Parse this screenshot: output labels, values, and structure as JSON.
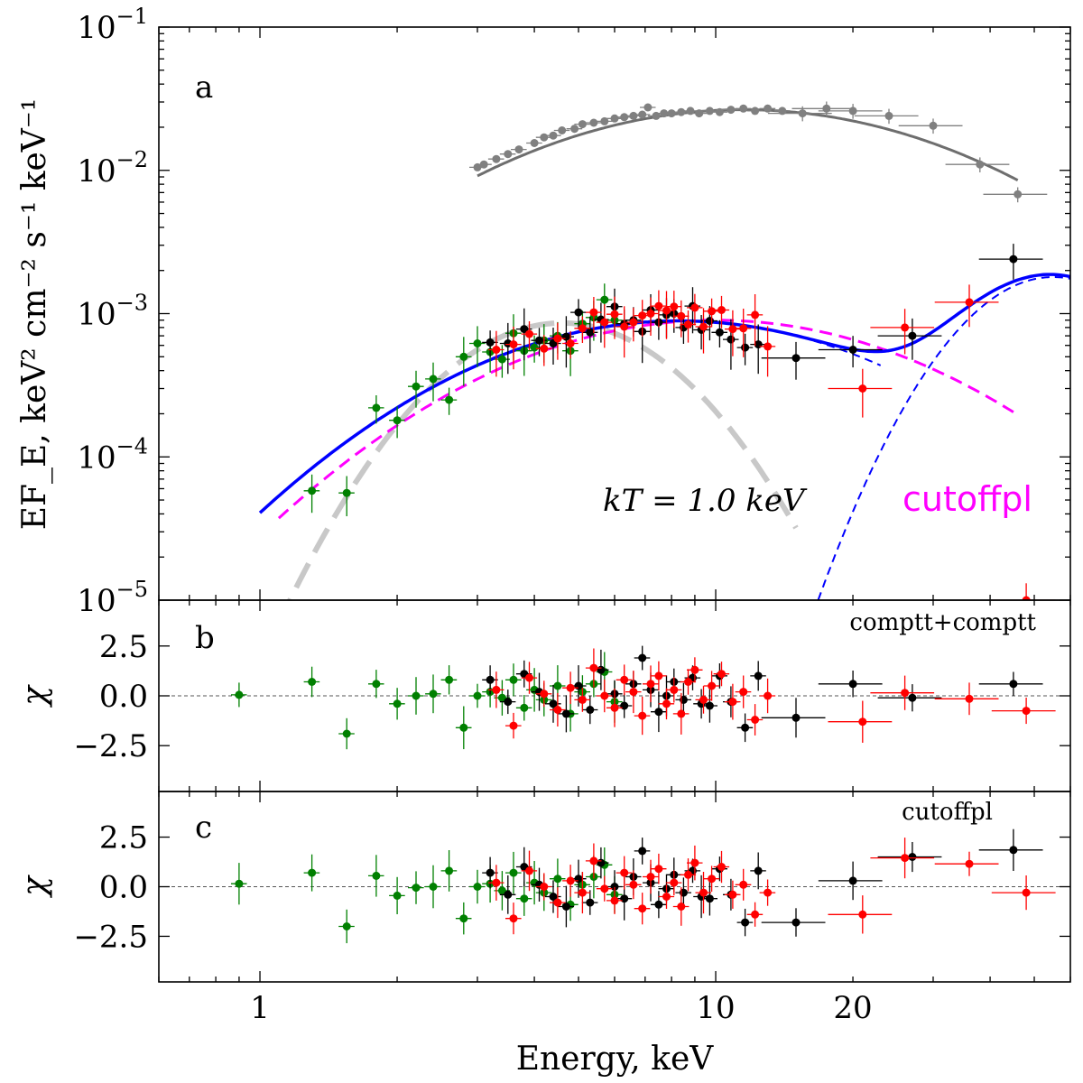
{
  "chart_data": {
    "type": "scatter",
    "xscale": "log",
    "xlim": [
      0.6,
      60
    ],
    "xlabel": "Energy, keV",
    "x_ticks": [
      1,
      10,
      20
    ],
    "x_tick_labels": [
      "1",
      "10",
      "20"
    ],
    "panels": [
      {
        "id": "a",
        "label": "a",
        "yscale": "log",
        "ylim": [
          1e-05,
          0.1
        ],
        "ylabel": "EF_E, keV² cm⁻² s⁻¹ keV⁻¹",
        "y_tick_exponents": [
          -5,
          -4,
          -3,
          -2,
          -1
        ],
        "annotations": {
          "kT": "kT = 1.0 keV",
          "cutoffpl": "cutoffpl"
        },
        "colors": {
          "black": "#000000",
          "red": "#ff0000",
          "green": "#008000",
          "grey": "#808080",
          "total": "#0000ff",
          "cutoffpl": "#ff00ff",
          "bbody": "#c8c8c8"
        },
        "series": [
          {
            "name": "green",
            "color": "#008000",
            "x": [
              1.3,
              1.55,
              1.8,
              2.0,
              2.2,
              2.4,
              2.6,
              2.8,
              3.0,
              3.2,
              3.4,
              3.6,
              3.8,
              4.0,
              4.2,
              4.5,
              4.8,
              5.1,
              5.4,
              5.7,
              6.0
            ],
            "y": [
              5.8e-05,
              5.6e-05,
              0.00022,
              0.00018,
              0.00031,
              0.00035,
              0.00025,
              0.0005,
              0.00062,
              0.00054,
              0.00048,
              0.00073,
              0.00055,
              0.00058,
              0.00065,
              0.0007,
              0.00055,
              0.00085,
              0.00094,
              0.00125,
              0.0009
            ]
          },
          {
            "name": "black",
            "color": "#000000",
            "x": [
              3.2,
              3.5,
              3.8,
              4.1,
              4.4,
              4.7,
              5.0,
              5.3,
              5.6,
              6.0,
              6.3,
              6.6,
              6.9,
              7.2,
              7.5,
              7.8,
              8.1,
              8.5,
              8.9,
              9.3,
              9.7,
              10.2,
              10.8,
              11.6,
              12.4,
              15.0,
              20.0,
              27.0,
              45.0
            ],
            "y": [
              0.00063,
              0.00062,
              0.00078,
              0.00065,
              0.00062,
              0.00069,
              0.00102,
              0.00074,
              0.00091,
              0.00112,
              0.00085,
              0.0009,
              0.00075,
              0.00106,
              0.00087,
              0.00098,
              0.001,
              0.0008,
              0.00113,
              0.00077,
              0.00089,
              0.00074,
              0.00066,
              0.00058,
              0.00061,
              0.00049,
              0.00056,
              0.0007,
              0.0024
            ]
          },
          {
            "name": "red",
            "color": "#ff0000",
            "x": [
              3.3,
              3.6,
              3.9,
              4.2,
              4.5,
              4.8,
              5.1,
              5.4,
              5.7,
              6.0,
              6.3,
              6.6,
              6.9,
              7.2,
              7.5,
              7.8,
              8.1,
              8.4,
              8.7,
              9.0,
              9.4,
              9.8,
              10.3,
              10.9,
              11.5,
              12.2,
              13.0,
              21.0,
              26.0,
              36.0,
              48.0
            ],
            "y": [
              0.00056,
              0.00061,
              0.00072,
              0.00057,
              0.00067,
              0.00062,
              0.00079,
              0.00102,
              0.00087,
              0.00099,
              0.00081,
              0.00087,
              0.00097,
              0.001,
              0.00113,
              0.00105,
              0.00112,
              0.00096,
              0.00084,
              0.0011,
              0.00081,
              0.00104,
              0.00106,
              0.00078,
              0.00079,
              0.00098,
              0.00059,
              0.0003,
              0.0008,
              0.0012,
              1e-05
            ]
          },
          {
            "name": "grey",
            "color": "#808080",
            "x": [
              3.0,
              3.1,
              3.3,
              3.5,
              3.7,
              4.0,
              4.2,
              4.4,
              4.6,
              4.9,
              5.1,
              5.4,
              5.7,
              6.0,
              6.3,
              6.6,
              6.9,
              7.1,
              7.4,
              7.7,
              8.0,
              8.4,
              8.8,
              9.2,
              9.7,
              10.2,
              10.8,
              11.5,
              12.2,
              13.0,
              14.0,
              15.5,
              17.5,
              20.0,
              24.0,
              30.0,
              38.0,
              46.0
            ],
            "y": [
              0.0105,
              0.011,
              0.012,
              0.013,
              0.014,
              0.0155,
              0.017,
              0.0175,
              0.019,
              0.0195,
              0.021,
              0.0215,
              0.022,
              0.023,
              0.0235,
              0.024,
              0.0245,
              0.0275,
              0.024,
              0.025,
              0.025,
              0.0255,
              0.026,
              0.025,
              0.026,
              0.0255,
              0.0265,
              0.027,
              0.026,
              0.027,
              0.026,
              0.025,
              0.027,
              0.026,
              0.024,
              0.0205,
              0.011,
              0.0068
            ]
          }
        ]
      },
      {
        "id": "b",
        "label": "b",
        "model": "comptt+comptt",
        "ylim": [
          -4.8,
          4.8
        ],
        "ylabel": "χ",
        "y_ticks": [
          -2.5,
          0.0,
          2.5
        ],
        "y_tick_labels": [
          "−2.5",
          "0.0",
          "2.5"
        ],
        "series": [
          {
            "name": "green",
            "color": "#008000",
            "x": [
              0.9,
              1.3,
              1.55,
              1.8,
              2.0,
              2.2,
              2.4,
              2.6,
              2.8,
              3.0,
              3.2,
              3.4,
              3.6,
              3.8,
              4.0,
              4.2,
              4.5,
              4.8,
              5.1,
              5.4,
              5.7,
              6.0
            ],
            "y": [
              0.05,
              0.7,
              -1.9,
              0.6,
              -0.4,
              0.0,
              0.1,
              0.8,
              -1.6,
              0.0,
              0.2,
              -0.1,
              0.8,
              -0.6,
              0.3,
              -0.2,
              0.5,
              -0.9,
              0.2,
              0.6,
              1.2,
              -0.3
            ]
          },
          {
            "name": "black",
            "color": "#000000",
            "x": [
              3.2,
              3.5,
              3.8,
              4.1,
              4.4,
              4.7,
              5.0,
              5.3,
              5.6,
              6.0,
              6.3,
              6.6,
              6.9,
              7.2,
              7.5,
              7.8,
              8.1,
              8.5,
              8.9,
              9.3,
              9.7,
              10.2,
              10.8,
              11.6,
              12.4,
              15.0,
              20.0,
              27.0,
              45.0
            ],
            "y": [
              0.8,
              -0.3,
              1.1,
              0.2,
              -0.4,
              -0.9,
              0.5,
              -0.7,
              1.3,
              0.1,
              -0.5,
              0.6,
              1.9,
              0.3,
              -0.8,
              0.0,
              0.7,
              -0.2,
              0.9,
              -0.4,
              -0.5,
              1.0,
              -0.3,
              -1.6,
              1.0,
              -1.1,
              0.6,
              -0.1,
              0.6
            ]
          },
          {
            "name": "red",
            "color": "#ff0000",
            "x": [
              3.3,
              3.6,
              3.9,
              4.2,
              4.5,
              4.8,
              5.1,
              5.4,
              5.7,
              6.0,
              6.3,
              6.6,
              6.9,
              7.2,
              7.5,
              7.8,
              8.1,
              8.4,
              8.7,
              9.0,
              9.4,
              9.8,
              10.3,
              10.9,
              11.5,
              12.2,
              13.0,
              21.0,
              26.0,
              36.0,
              48.0
            ],
            "y": [
              0.3,
              -1.5,
              0.9,
              0.1,
              -0.7,
              0.4,
              -0.2,
              1.4,
              0.0,
              -0.6,
              0.8,
              0.2,
              -1.0,
              0.6,
              1.0,
              -0.4,
              0.3,
              -0.9,
              0.7,
              1.3,
              -0.2,
              0.5,
              1.1,
              -0.3,
              0.2,
              -1.2,
              0.0,
              -1.3,
              0.15,
              -0.15,
              -0.75
            ]
          }
        ]
      },
      {
        "id": "c",
        "label": "c",
        "model": "cutoffpl",
        "ylim": [
          -4.8,
          4.8
        ],
        "ylabel": "χ",
        "y_ticks": [
          -2.5,
          0.0,
          2.5
        ],
        "y_tick_labels": [
          "−2.5",
          "0.0",
          "2.5"
        ],
        "series": [
          {
            "name": "green",
            "color": "#008000",
            "x": [
              0.9,
              1.3,
              1.55,
              1.8,
              2.0,
              2.2,
              2.4,
              2.6,
              2.8,
              3.0,
              3.2,
              3.4,
              3.6,
              3.8,
              4.0,
              4.2,
              4.5,
              4.8,
              5.1,
              5.4,
              5.7,
              6.0
            ],
            "y": [
              0.15,
              0.7,
              -2.0,
              0.55,
              -0.45,
              -0.05,
              0.0,
              0.8,
              -1.6,
              0.0,
              0.15,
              -0.2,
              0.7,
              -0.6,
              0.2,
              -0.3,
              0.4,
              -0.9,
              0.1,
              0.5,
              1.1,
              -0.4
            ]
          },
          {
            "name": "black",
            "color": "#000000",
            "x": [
              3.2,
              3.5,
              3.8,
              4.1,
              4.4,
              4.7,
              5.0,
              5.3,
              5.6,
              6.0,
              6.3,
              6.6,
              6.9,
              7.2,
              7.5,
              7.8,
              8.1,
              8.5,
              8.9,
              9.3,
              9.7,
              10.2,
              10.8,
              11.6,
              12.4,
              15.0,
              20.0,
              27.0,
              45.0
            ],
            "y": [
              0.7,
              -0.4,
              1.0,
              0.1,
              -0.5,
              -1.0,
              0.4,
              -0.8,
              1.2,
              0.0,
              -0.6,
              0.5,
              1.8,
              0.2,
              -0.9,
              -0.1,
              0.6,
              -0.3,
              0.8,
              -0.5,
              -0.6,
              0.9,
              -0.4,
              -1.8,
              0.8,
              -1.8,
              0.3,
              1.5,
              1.85
            ]
          },
          {
            "name": "red",
            "color": "#ff0000",
            "x": [
              3.3,
              3.6,
              3.9,
              4.2,
              4.5,
              4.8,
              5.1,
              5.4,
              5.7,
              6.0,
              6.3,
              6.6,
              6.9,
              7.2,
              7.5,
              7.8,
              8.1,
              8.4,
              8.7,
              9.0,
              9.4,
              9.8,
              10.3,
              10.9,
              11.5,
              12.2,
              13.0,
              21.0,
              26.0,
              36.0,
              48.0
            ],
            "y": [
              0.2,
              -1.6,
              0.8,
              0.0,
              -0.8,
              0.3,
              -0.3,
              1.3,
              -0.1,
              -0.7,
              0.7,
              0.1,
              -1.1,
              0.5,
              0.9,
              -0.5,
              0.2,
              -1.0,
              0.6,
              1.2,
              -0.3,
              0.4,
              1.0,
              -0.4,
              0.1,
              -1.4,
              -0.3,
              -1.4,
              1.45,
              1.15,
              -0.3
            ]
          }
        ]
      }
    ]
  }
}
